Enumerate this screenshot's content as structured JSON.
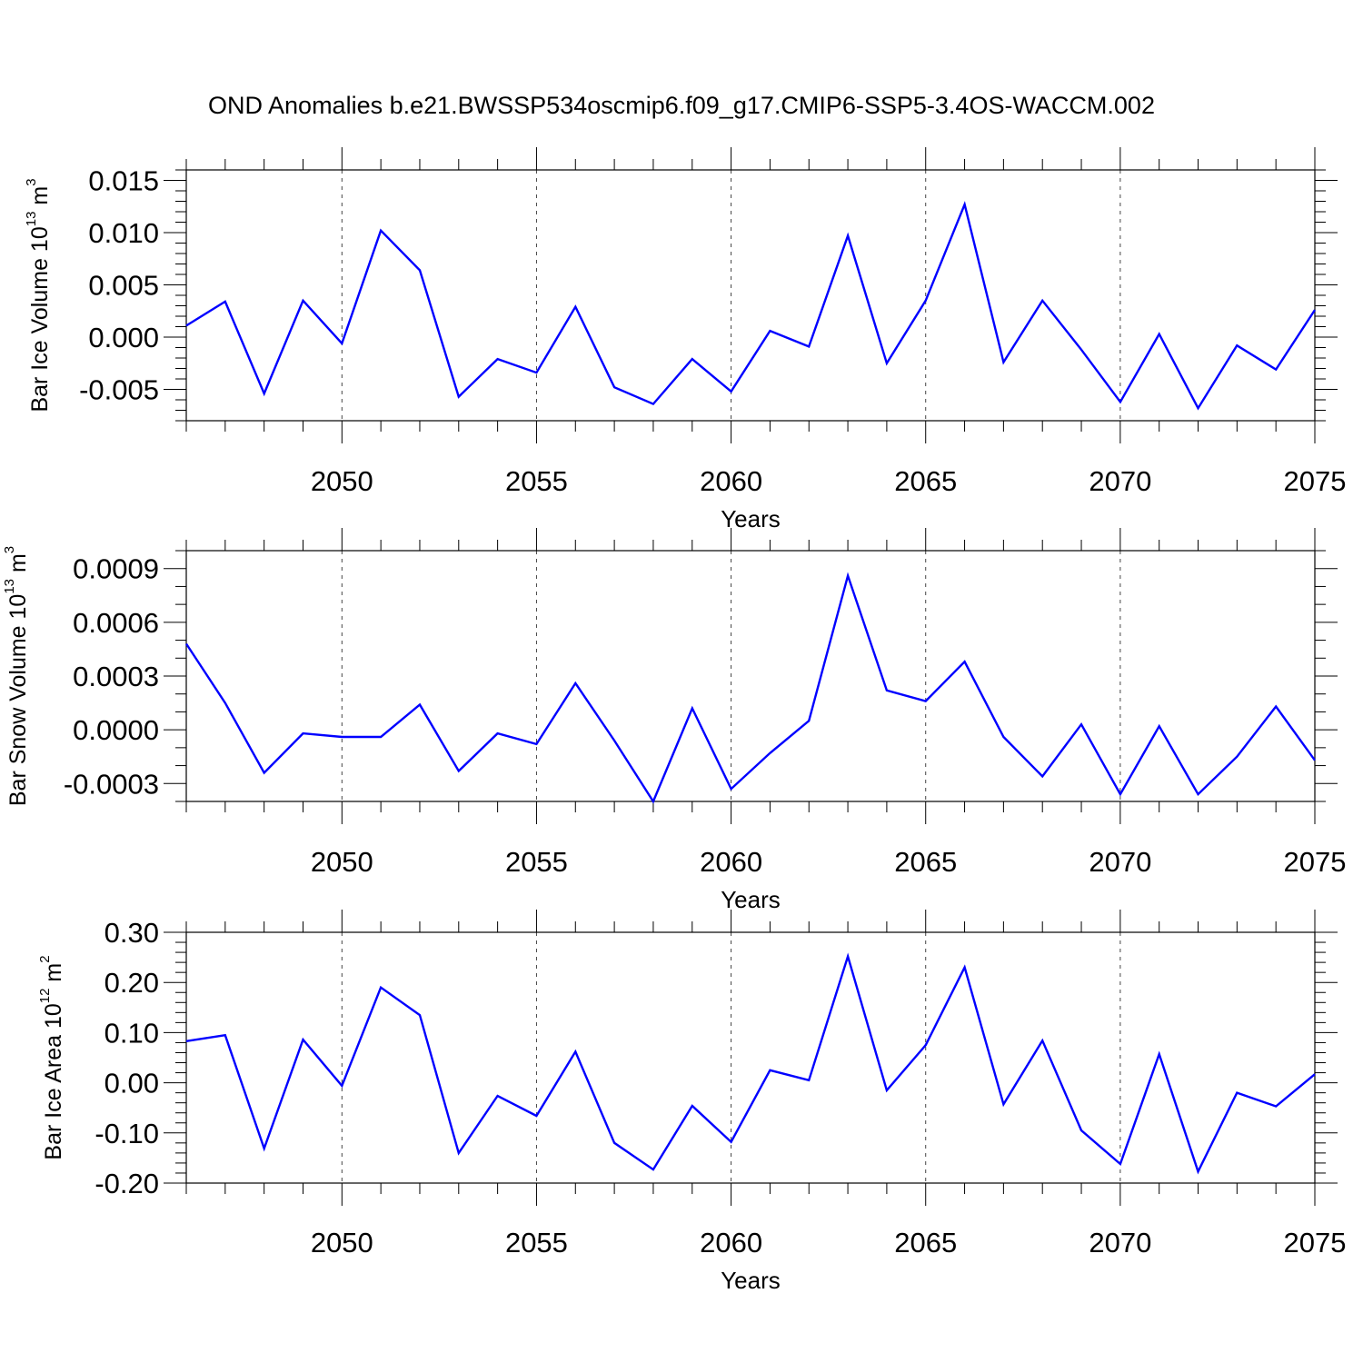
{
  "title": "OND Anomalies b.e21.BWSSP534oscmip6.f09_g17.CMIP6-SSP5-3.4OS-WACCM.002",
  "colors": {
    "line": "#0000ff",
    "axis": "#000000",
    "background": "#ffffff"
  },
  "chart_data": [
    {
      "type": "line",
      "ylabel_base": "Bar Ice Volume 10",
      "ylabel_exp": "13",
      "ylabel_unit": " m",
      "ylabel_unit_exp": "3",
      "xlabel": "Years",
      "xlim": [
        2046,
        2075
      ],
      "ylim": [
        -0.008,
        0.016
      ],
      "yticks": [
        -0.005,
        0.0,
        0.005,
        0.01,
        0.015
      ],
      "ytick_labels": [
        "-0.005",
        "0.000",
        "0.005",
        "0.010",
        "0.015"
      ],
      "xticks": [
        2050,
        2055,
        2060,
        2065,
        2070,
        2075
      ],
      "xtick_labels": [
        "2050",
        "2055",
        "2060",
        "2065",
        "2070",
        "2075"
      ],
      "grid_x": [
        2050,
        2055,
        2060,
        2065,
        2070
      ],
      "ytick_minor_step": 0.001,
      "series": [
        {
          "name": "Bar Ice Volume",
          "x": [
            2046,
            2047,
            2048,
            2049,
            2050,
            2051,
            2052,
            2053,
            2054,
            2055,
            2056,
            2057,
            2058,
            2059,
            2060,
            2061,
            2062,
            2063,
            2064,
            2065,
            2066,
            2067,
            2068,
            2069,
            2070,
            2071,
            2072,
            2073,
            2074,
            2075
          ],
          "values": [
            0.0011,
            0.0034,
            -0.0054,
            0.0035,
            -0.0006,
            0.0102,
            0.0064,
            -0.0057,
            -0.0021,
            -0.0034,
            0.0029,
            -0.0048,
            -0.0064,
            -0.0021,
            -0.0052,
            0.0006,
            -0.0009,
            0.0097,
            -0.0025,
            0.0035,
            0.0127,
            -0.0024,
            0.0035,
            -0.0012,
            -0.0062,
            0.0003,
            -0.0068,
            -0.0008,
            -0.0031,
            0.0026
          ]
        }
      ]
    },
    {
      "type": "line",
      "ylabel_base": "Bar Snow Volume 10",
      "ylabel_exp": "13",
      "ylabel_unit": " m",
      "ylabel_unit_exp": "3",
      "xlabel": "Years",
      "xlim": [
        2046,
        2075
      ],
      "ylim": [
        -0.0004,
        0.001
      ],
      "yticks": [
        -0.0003,
        0.0,
        0.0003,
        0.0006,
        0.0009
      ],
      "ytick_labels": [
        "-0.0003",
        "0.0000",
        "0.0003",
        "0.0006",
        "0.0009"
      ],
      "xticks": [
        2050,
        2055,
        2060,
        2065,
        2070,
        2075
      ],
      "xtick_labels": [
        "2050",
        "2055",
        "2060",
        "2065",
        "2070",
        "2075"
      ],
      "grid_x": [
        2050,
        2055,
        2060,
        2065,
        2070
      ],
      "ytick_minor_step": 0.0001,
      "series": [
        {
          "name": "Bar Snow Volume",
          "x": [
            2046,
            2047,
            2048,
            2049,
            2050,
            2051,
            2052,
            2053,
            2054,
            2055,
            2056,
            2057,
            2058,
            2059,
            2060,
            2061,
            2062,
            2063,
            2064,
            2065,
            2066,
            2067,
            2068,
            2069,
            2070,
            2071,
            2072,
            2073,
            2074,
            2075
          ],
          "values": [
            0.00048,
            0.00015,
            -0.00024,
            -2e-05,
            -4e-05,
            -4e-05,
            0.00014,
            -0.00023,
            -2e-05,
            -8e-05,
            0.00026,
            -6e-05,
            -0.0004,
            0.00012,
            -0.00033,
            -0.00013,
            5e-05,
            0.00086,
            0.00022,
            0.00016,
            0.00038,
            -4e-05,
            -0.00026,
            3e-05,
            -0.00036,
            2e-05,
            -0.00036,
            -0.00015,
            0.00013,
            -0.00017
          ]
        }
      ]
    },
    {
      "type": "line",
      "ylabel_base": "Bar Ice Area 10",
      "ylabel_exp": "12",
      "ylabel_unit": " m",
      "ylabel_unit_exp": "2",
      "xlabel": "Years",
      "xlim": [
        2046,
        2075
      ],
      "ylim": [
        -0.2,
        0.3
      ],
      "yticks": [
        -0.2,
        -0.1,
        0.0,
        0.1,
        0.2,
        0.3
      ],
      "ytick_labels": [
        "-0.20",
        "-0.10",
        "0.00",
        "0.10",
        "0.20",
        "0.30"
      ],
      "xticks": [
        2050,
        2055,
        2060,
        2065,
        2070,
        2075
      ],
      "xtick_labels": [
        "2050",
        "2055",
        "2060",
        "2065",
        "2070",
        "2075"
      ],
      "grid_x": [
        2050,
        2055,
        2060,
        2065,
        2070
      ],
      "ytick_minor_step": 0.02,
      "series": [
        {
          "name": "Bar Ice Area",
          "x": [
            2046,
            2047,
            2048,
            2049,
            2050,
            2051,
            2052,
            2053,
            2054,
            2055,
            2056,
            2057,
            2058,
            2059,
            2060,
            2061,
            2062,
            2063,
            2064,
            2065,
            2066,
            2067,
            2068,
            2069,
            2070,
            2071,
            2072,
            2073,
            2074,
            2075
          ],
          "values": [
            0.083,
            0.095,
            -0.131,
            0.086,
            -0.006,
            0.19,
            0.135,
            -0.14,
            -0.026,
            -0.066,
            0.062,
            -0.12,
            -0.173,
            -0.046,
            -0.118,
            0.025,
            0.005,
            0.252,
            -0.015,
            0.075,
            0.23,
            -0.043,
            0.084,
            -0.095,
            -0.162,
            0.057,
            -0.177,
            -0.02,
            -0.047,
            0.017
          ]
        }
      ]
    }
  ]
}
